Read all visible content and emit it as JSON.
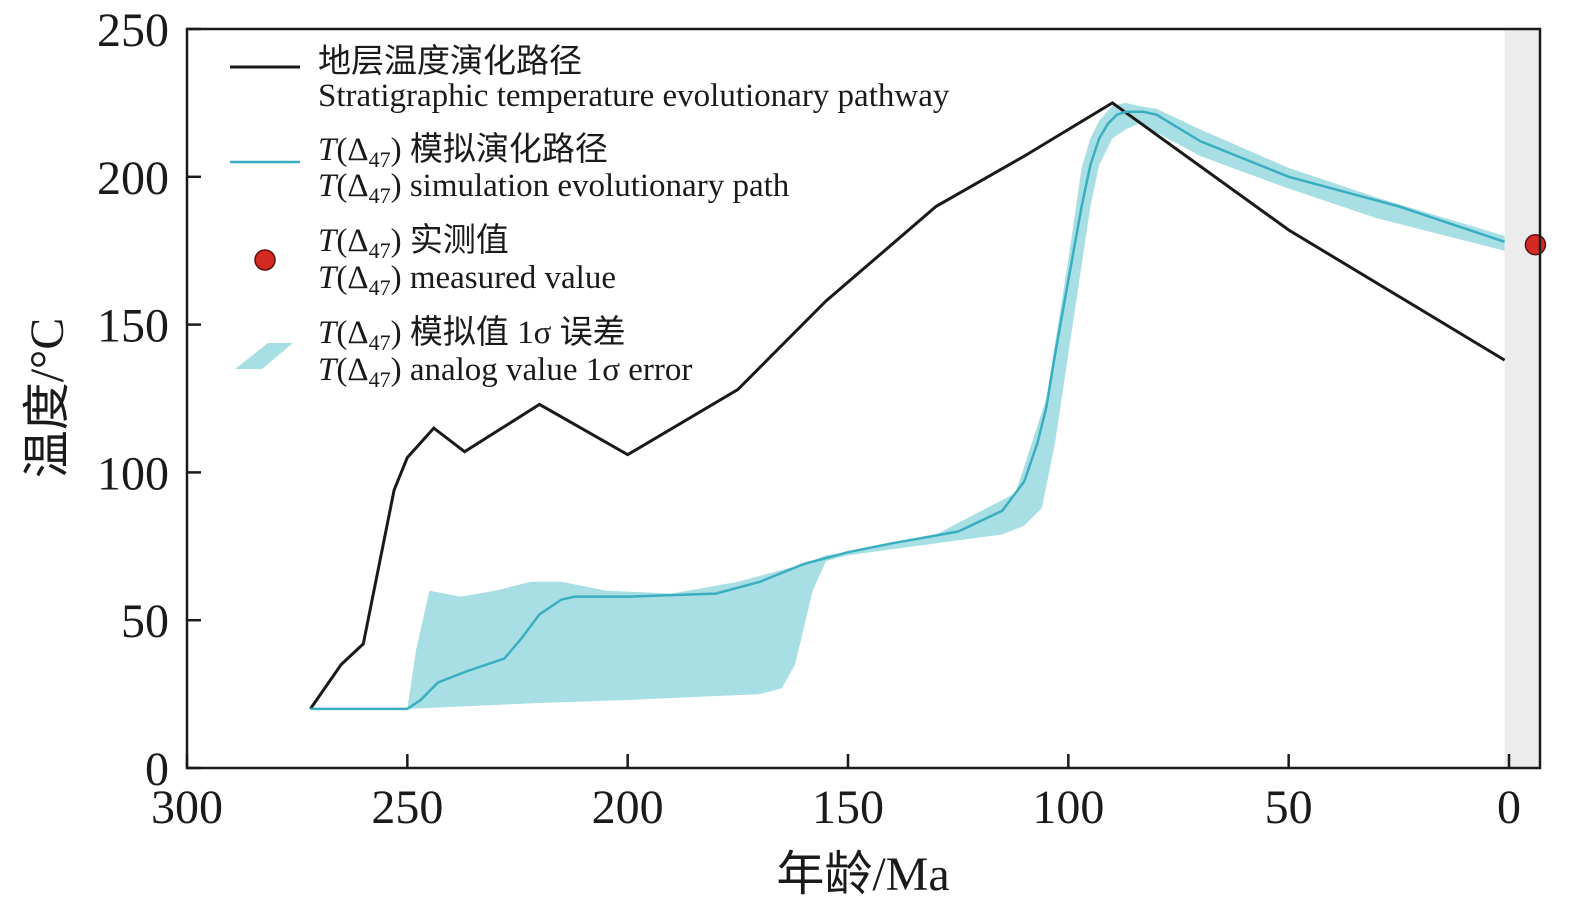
{
  "chart_data": {
    "type": "line",
    "xlabel": "年龄/Ma",
    "ylabel": "温度/°C",
    "xlim": [
      300,
      0
    ],
    "ylim": [
      0,
      250
    ],
    "x_ticks": [
      "300",
      "250",
      "200",
      "150",
      "100",
      "50",
      "0"
    ],
    "y_ticks": [
      "0",
      "50",
      "100",
      "150",
      "200",
      "250"
    ],
    "grid": false,
    "legend_position": "top-left",
    "colors": {
      "stratigraphic": "#1a1a1a",
      "simulation": "#3aaec0",
      "error_band": "#a8dfe5",
      "measured": "#d42a22",
      "shade": "#ececec"
    },
    "legend": [
      {
        "key": "stratigraphic",
        "symbol": "line",
        "zh": "地层温度演化路径",
        "en": "Stratigraphic temperature evolutionary pathway"
      },
      {
        "key": "simulation",
        "symbol": "line",
        "zh_prefix": "T(Δ",
        "zh_sub": "47",
        "zh_suffix": ") 模拟演化路径",
        "en_prefix": "T(Δ",
        "en_sub": "47",
        "en_suffix": ") simulation evolutionary path"
      },
      {
        "key": "measured",
        "symbol": "dot",
        "zh_prefix": "T(Δ",
        "zh_sub": "47",
        "zh_suffix": ") 实测值",
        "en_prefix": "T(Δ",
        "en_sub": "47",
        "en_suffix": ") measured value"
      },
      {
        "key": "error_band",
        "symbol": "band",
        "zh_prefix": "T(Δ",
        "zh_sub": "47",
        "zh_suffix": ") 模拟值 1σ 误差",
        "en_prefix": "T(Δ",
        "en_sub": "47",
        "en_suffix": ") analog value 1σ error"
      }
    ],
    "series": [
      {
        "name": "地层温度演化路径",
        "x": [
          272,
          265,
          260,
          253,
          250,
          244,
          237,
          220,
          200,
          175,
          155,
          130,
          110,
          100,
          90,
          50,
          1
        ],
        "y": [
          20,
          35,
          42,
          94,
          105,
          115,
          107,
          123,
          106,
          128,
          158,
          190,
          207,
          216,
          225,
          182,
          138
        ]
      },
      {
        "name": "T(Δ47) 模拟演化路径",
        "x": [
          272,
          250,
          247,
          243,
          236,
          228,
          224,
          220,
          215,
          212,
          200,
          180,
          170,
          160,
          150,
          140,
          125,
          115,
          110,
          107,
          105,
          103,
          100,
          97,
          95,
          93,
          91,
          89,
          87,
          83,
          80,
          70,
          50,
          25,
          1
        ],
        "y": [
          20,
          20,
          23,
          29,
          33,
          37,
          44,
          52,
          57,
          58,
          58,
          59,
          63,
          69,
          73,
          76,
          80,
          87,
          97,
          110,
          122,
          140,
          165,
          190,
          204,
          213,
          218,
          221,
          222,
          222,
          221,
          212,
          200,
          190,
          178
        ]
      }
    ],
    "error_band": {
      "upper": {
        "x": [
          272,
          250,
          248,
          245,
          238,
          230,
          222,
          215,
          205,
          190,
          175,
          160,
          155,
          150,
          130,
          112,
          105,
          100,
          97,
          95,
          93,
          90,
          87,
          84,
          80,
          70,
          50,
          30,
          1
        ],
        "y": [
          20,
          20,
          40,
          60,
          58,
          60,
          63,
          63,
          60,
          59,
          63,
          69,
          72,
          73,
          79,
          93,
          125,
          172,
          203,
          213,
          219,
          224,
          225,
          224,
          223,
          216,
          203,
          193,
          180
        ]
      },
      "lower": {
        "x": [
          1,
          30,
          50,
          70,
          80,
          84,
          87,
          90,
          93,
          95,
          97,
          100,
          103,
          106,
          110,
          115,
          125,
          140,
          150,
          155,
          158,
          162,
          165,
          170,
          200,
          220,
          250,
          272
        ],
        "y": [
          175,
          186,
          196,
          207,
          215,
          218,
          216,
          213,
          204,
          190,
          170,
          140,
          110,
          88,
          82,
          79,
          77,
          74,
          72,
          70,
          60,
          35,
          27,
          25,
          23,
          22,
          20,
          20
        ]
      }
    },
    "measured": {
      "x": -6,
      "y": 177
    },
    "shaded_region": {
      "x_from": 1,
      "x_to": -12
    }
  }
}
